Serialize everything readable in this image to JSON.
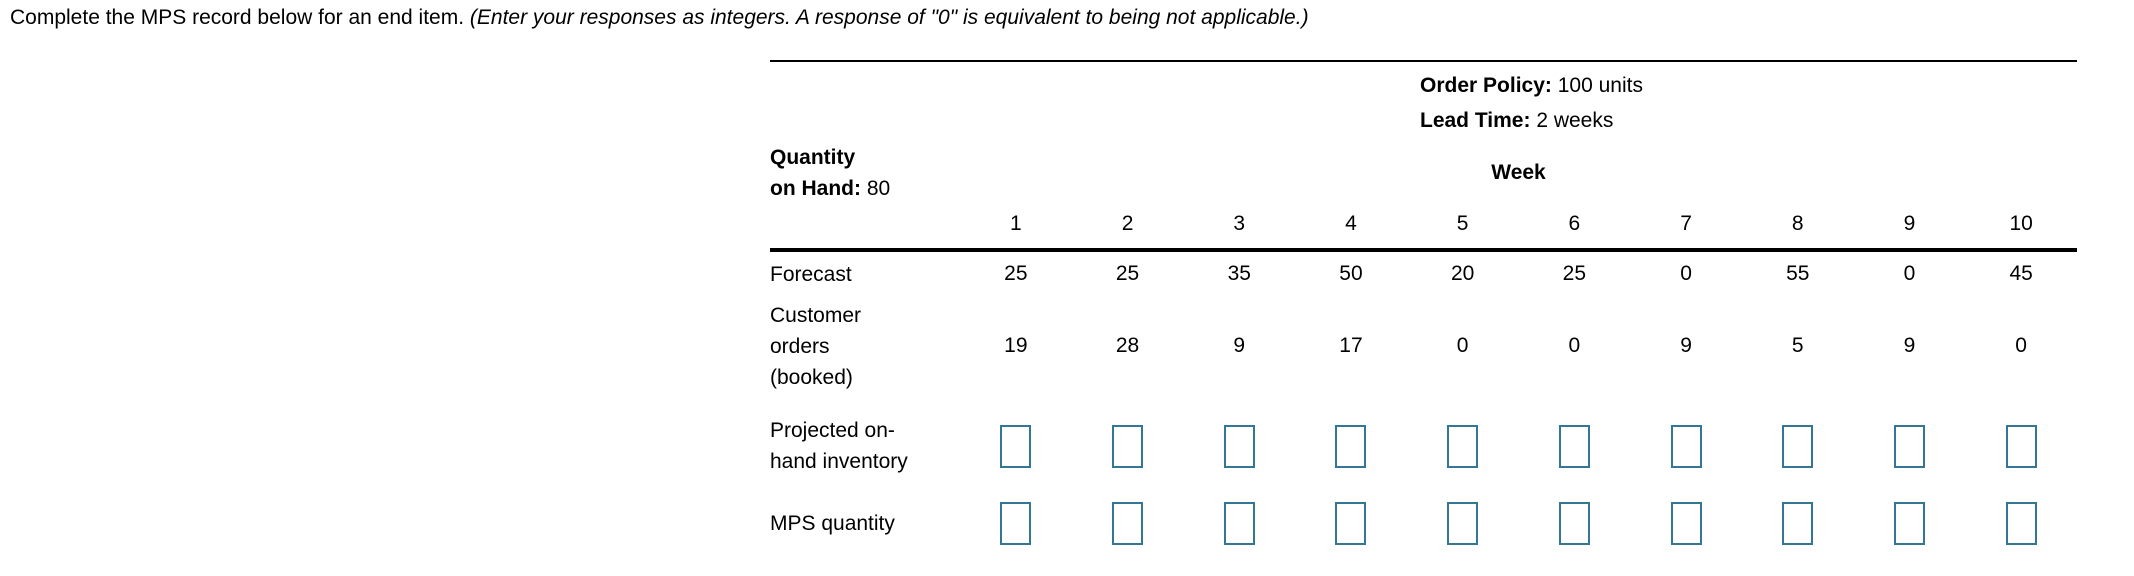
{
  "title": {
    "text": "Complete the MPS record below for an end item. ",
    "note": "(Enter your responses as integers. A response of \"0\" is equivalent to being not applicable.)"
  },
  "info": {
    "order_policy": {
      "label": "Order Policy:",
      "value": "100 units"
    },
    "lead_time": {
      "label": "Lead Time:",
      "value": "2 weeks"
    },
    "quantity_on_hand": {
      "label_line1": "Quantity",
      "label_line2": "on Hand:",
      "value": "80"
    },
    "week_header": "Week"
  },
  "table": {
    "weeks": [
      "1",
      "2",
      "3",
      "4",
      "5",
      "6",
      "7",
      "8",
      "9",
      "10"
    ],
    "rows": {
      "forecast": {
        "label": "Forecast",
        "values": [
          "25",
          "25",
          "35",
          "50",
          "20",
          "25",
          "0",
          "55",
          "0",
          "45"
        ]
      },
      "customer_orders": {
        "label": "Customer orders (booked)",
        "values": [
          "19",
          "28",
          "9",
          "17",
          "0",
          "0",
          "9",
          "5",
          "9",
          "0"
        ]
      },
      "projected_on_hand": {
        "label": "Projected on-hand inventory",
        "values": [
          "",
          "",
          "",
          "",
          "",
          "",
          "",
          "",
          "",
          ""
        ]
      },
      "mps_quantity": {
        "label": "MPS quantity",
        "values": [
          "",
          "",
          "",
          "",
          "",
          "",
          "",
          "",
          "",
          ""
        ]
      }
    }
  },
  "colors": {
    "input_border": "#337794"
  }
}
